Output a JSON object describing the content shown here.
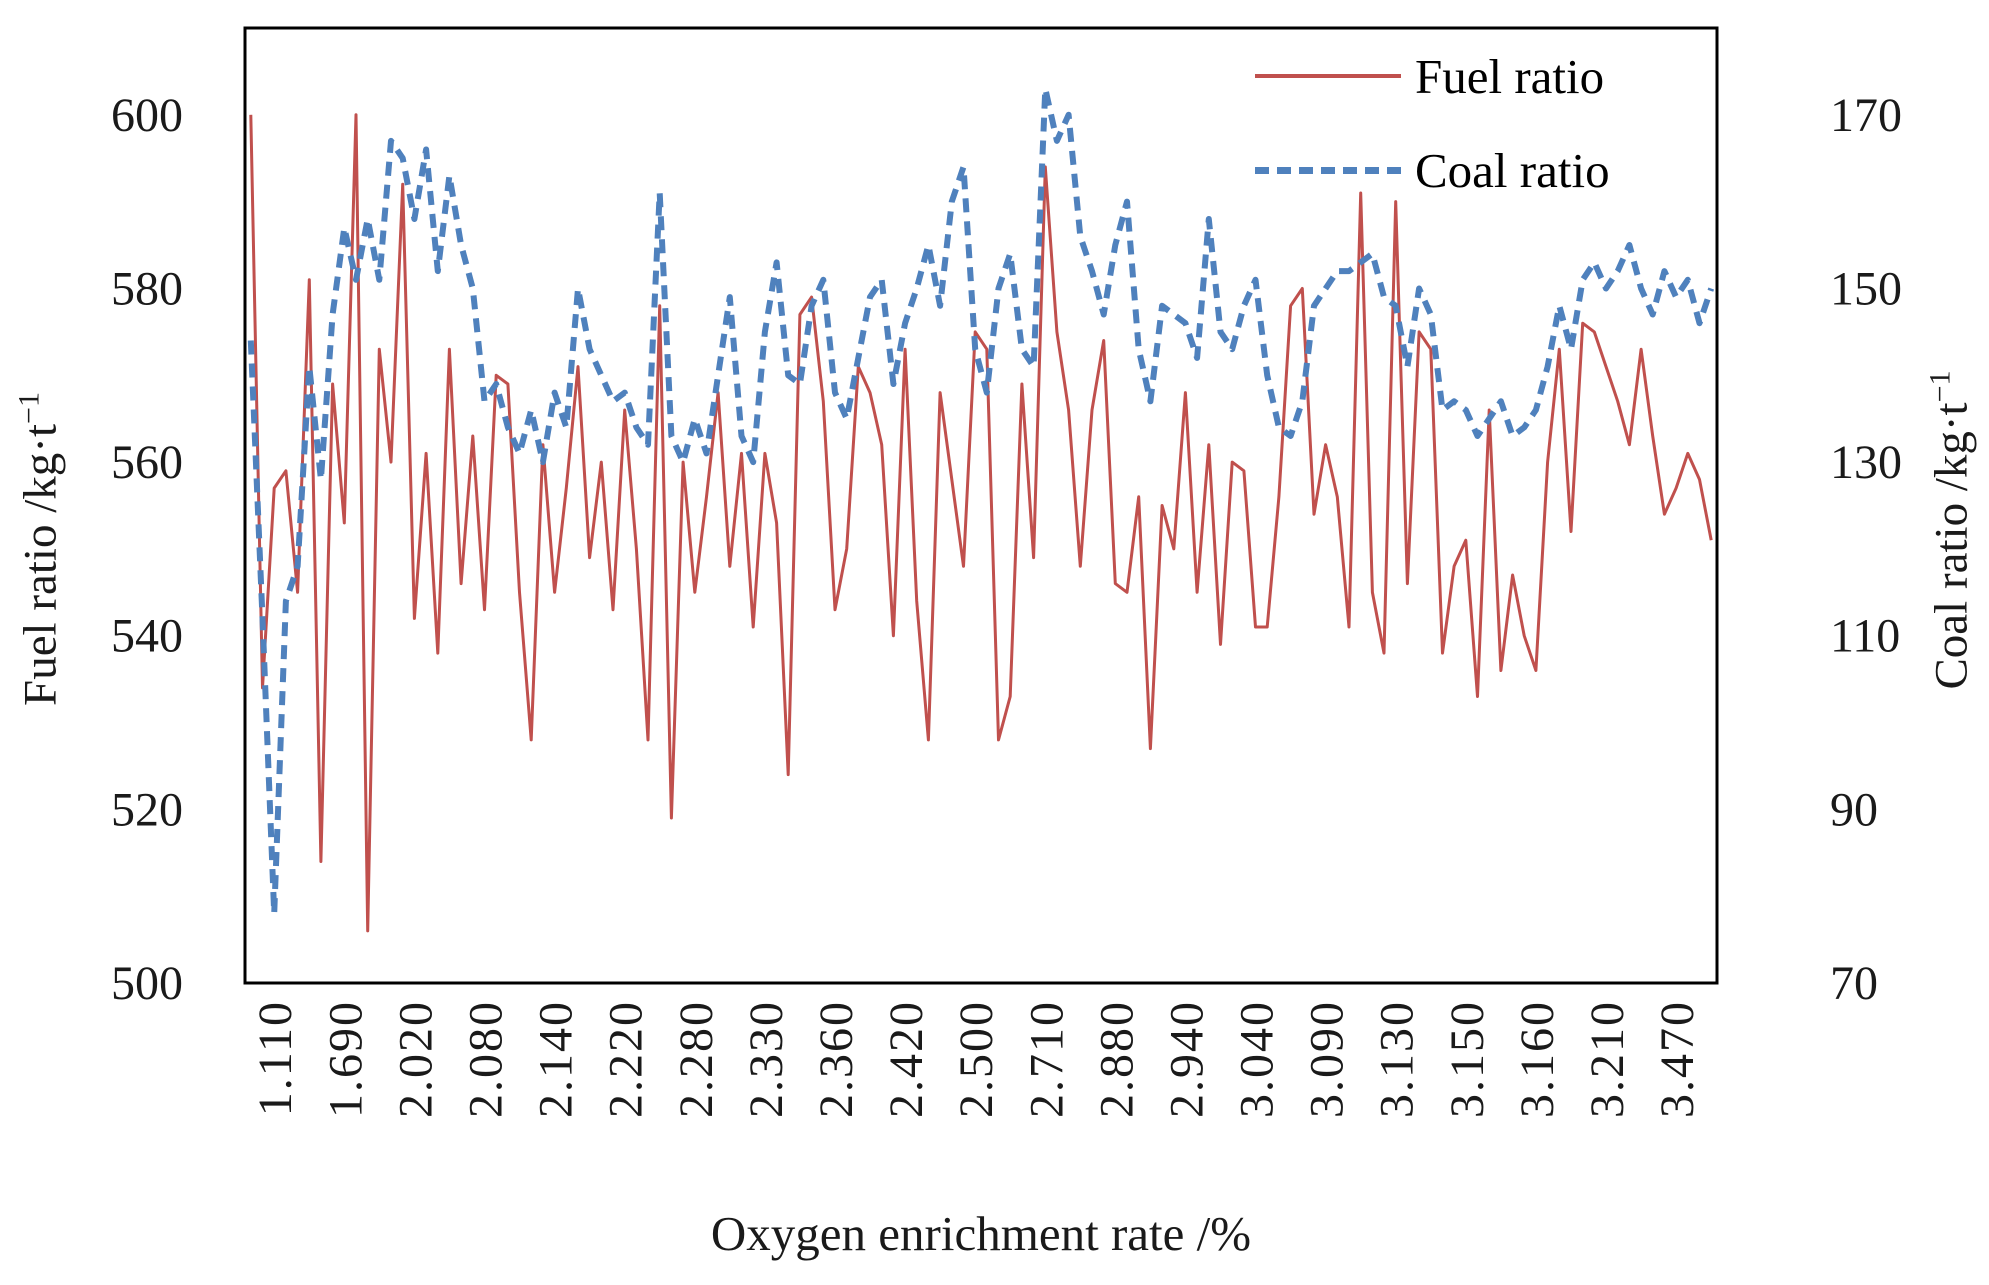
{
  "chart_data": {
    "type": "line",
    "title": "",
    "xlabel": "Oxygen enrichment rate /%",
    "ylabel_left": "Fuel ratio /kg·t",
    "ylabel_left_sup": "−1",
    "ylabel_right": "Coal ratio /kg·t",
    "ylabel_right_sup": "−1",
    "grid": false,
    "legend_position": "top-right-inside",
    "plot_border_color": "#000000",
    "n_points": 126,
    "axis_left": {
      "min": 500,
      "max": 610,
      "ticks": [
        500,
        520,
        540,
        560,
        580,
        600
      ]
    },
    "axis_right": {
      "min": 70,
      "max": 180,
      "ticks": [
        70,
        90,
        110,
        130,
        150,
        170
      ]
    },
    "x_ticklabels": [
      "1.110",
      "1.690",
      "2.020",
      "2.080",
      "2.140",
      "2.220",
      "2.280",
      "2.330",
      "2.360",
      "2.420",
      "2.500",
      "2.710",
      "2.880",
      "2.940",
      "3.040",
      "3.090",
      "3.130",
      "3.150",
      "3.160",
      "3.210",
      "3.470"
    ],
    "x_tick_indices": [
      2,
      8,
      14,
      20,
      26,
      32,
      38,
      44,
      50,
      56,
      62,
      68,
      74,
      80,
      86,
      92,
      98,
      104,
      110,
      116,
      122
    ],
    "series": [
      {
        "name": "Fuel ratio",
        "axis": "left",
        "color": "#C0504D",
        "line_style": "solid",
        "values": [
          600,
          534,
          557,
          559,
          545,
          581,
          514,
          569,
          553,
          600,
          506,
          573,
          560,
          592,
          542,
          561,
          538,
          573,
          546,
          563,
          543,
          570,
          569,
          545,
          528,
          562,
          545,
          557,
          571,
          549,
          560,
          543,
          566,
          550,
          528,
          578,
          519,
          560,
          545,
          556,
          568,
          548,
          561,
          541,
          561,
          553,
          524,
          577,
          579,
          567,
          543,
          550,
          571,
          568,
          562,
          540,
          573,
          544,
          528,
          568,
          558,
          548,
          575,
          573,
          528,
          533,
          569,
          549,
          594,
          575,
          566,
          548,
          566,
          574,
          546,
          545,
          556,
          527,
          555,
          550,
          568,
          545,
          562,
          539,
          560,
          559,
          541,
          541,
          556,
          578,
          580,
          554,
          562,
          556,
          541,
          591,
          545,
          538,
          590,
          546,
          575,
          573,
          538,
          548,
          551,
          533,
          566,
          536,
          547,
          540,
          536,
          560,
          573,
          552,
          576,
          575,
          571,
          567,
          562,
          573,
          563,
          554,
          557,
          561,
          558,
          551
        ]
      },
      {
        "name": "Coal ratio",
        "axis": "right",
        "color": "#4F81BD",
        "line_style": "dashed",
        "values": [
          144,
          112,
          78,
          114,
          118,
          141,
          128,
          147,
          157,
          151,
          158,
          151,
          167,
          165,
          158,
          166,
          152,
          163,
          155,
          150,
          137,
          139,
          134,
          131,
          136,
          130,
          138,
          134,
          150,
          143,
          140,
          137,
          138,
          134,
          132,
          161,
          133,
          130,
          135,
          131,
          140,
          149,
          133,
          130,
          145,
          153,
          140,
          139,
          148,
          151,
          138,
          135,
          142,
          149,
          151,
          139,
          146,
          150,
          155,
          148,
          160,
          164,
          143,
          138,
          150,
          154,
          143,
          141,
          173,
          167,
          170,
          156,
          152,
          147,
          155,
          160,
          143,
          137,
          148,
          147,
          146,
          142,
          158,
          145,
          143,
          148,
          151,
          140,
          134,
          133,
          137,
          148,
          150,
          152,
          152,
          153,
          154,
          149,
          148,
          141,
          150,
          147,
          136,
          137,
          136,
          133,
          135,
          137,
          133,
          134,
          136,
          141,
          148,
          143,
          151,
          153,
          150,
          152,
          155,
          150,
          147,
          152,
          149,
          151,
          146,
          150
        ]
      }
    ]
  }
}
